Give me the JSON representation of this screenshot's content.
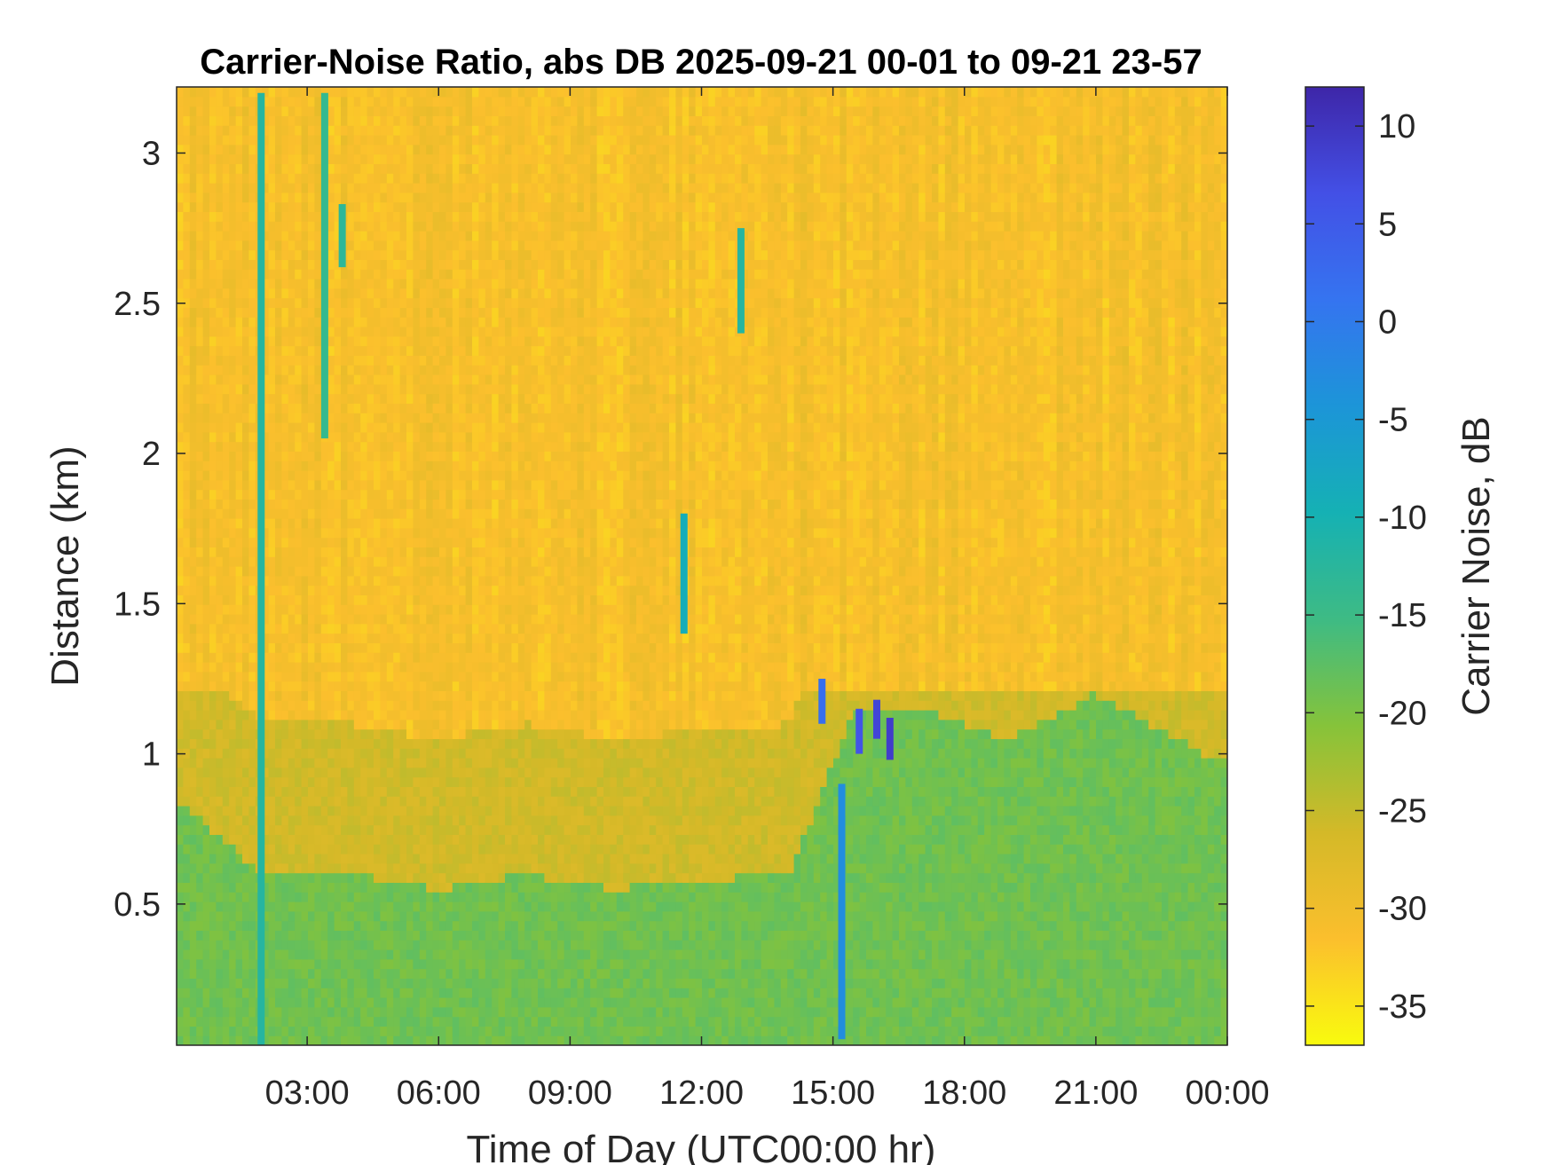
{
  "chart_data": {
    "type": "heatmap",
    "title": "Carrier-Noise Ratio, abs DB 2025-09-21 00-01 to 09-21 23-57",
    "xlabel": "Time of Day (UTC00:00 hr)",
    "ylabel": "Distance (km)",
    "colorbar_label": "Carrier Noise, dB",
    "x_range_hours": [
      0.02,
      24.0
    ],
    "x_ticks": [
      3,
      6,
      9,
      12,
      15,
      18,
      21,
      24
    ],
    "x_tick_labels": [
      "03:00",
      "06:00",
      "09:00",
      "12:00",
      "15:00",
      "18:00",
      "21:00",
      "00:00"
    ],
    "y_range_km": [
      0.03,
      3.22
    ],
    "y_ticks": [
      0.5,
      1,
      1.5,
      2,
      2.5,
      3
    ],
    "y_tick_labels": [
      "0.5",
      "1",
      "1.5",
      "2",
      "2.5",
      "3"
    ],
    "colorbar_range_db": [
      -37,
      12
    ],
    "colorbar_ticks": [
      10,
      5,
      0,
      -5,
      -10,
      -15,
      -20,
      -25,
      -30,
      -35
    ],
    "colorbar_tick_labels": [
      "10",
      "5",
      "0",
      "-5",
      "-10",
      "-15",
      "-20",
      "-25",
      "-30",
      "-35"
    ],
    "colormap": "parula (reversed: yellow = low, dark blue = high)",
    "colormap_stops": [
      "#f9fb0e",
      "#fbbf2d",
      "#d4b928",
      "#86c33a",
      "#3ebb84",
      "#15b1b4",
      "#1c95d8",
      "#3574f0",
      "#4350e6",
      "#3e26a8"
    ],
    "background_level_db": -31,
    "boundary_layer_height_km": [
      {
        "hour": 0,
        "km": 0.85
      },
      {
        "hour": 2,
        "km": 0.6
      },
      {
        "hour": 4,
        "km": 0.6
      },
      {
        "hour": 6,
        "km": 0.55
      },
      {
        "hour": 8,
        "km": 0.6
      },
      {
        "hour": 10,
        "km": 0.55
      },
      {
        "hour": 12,
        "km": 0.58
      },
      {
        "hour": 14,
        "km": 0.6
      },
      {
        "hour": 15.5,
        "km": 1.15
      },
      {
        "hour": 17,
        "km": 1.15
      },
      {
        "hour": 19,
        "km": 1.05
      },
      {
        "hour": 21,
        "km": 1.2
      },
      {
        "hour": 23.5,
        "km": 1.0
      }
    ],
    "boundary_layer_level_db": -19,
    "residual_layer": {
      "hour_start": 0,
      "hour_end": 24,
      "top_km": 1.2,
      "level_db": -26
    },
    "strong_returns": [
      {
        "hour": 1.95,
        "km_from": 0.03,
        "km_to": 3.2,
        "level_db": -12
      },
      {
        "hour": 3.4,
        "km_from": 2.05,
        "km_to": 3.2,
        "level_db": -14
      },
      {
        "hour": 3.8,
        "km_from": 2.62,
        "km_to": 2.83,
        "level_db": -13
      },
      {
        "hour": 11.6,
        "km_from": 1.4,
        "km_to": 1.8,
        "level_db": -9
      },
      {
        "hour": 12.9,
        "km_from": 2.4,
        "km_to": 2.75,
        "level_db": -12
      },
      {
        "hour": 14.75,
        "km_from": 1.1,
        "km_to": 1.25,
        "level_db": 2
      },
      {
        "hour": 15.2,
        "km_from": 0.05,
        "km_to": 0.9,
        "level_db": -3
      },
      {
        "hour": 15.6,
        "km_from": 1.0,
        "km_to": 1.15,
        "level_db": 6
      },
      {
        "hour": 16.0,
        "km_from": 1.05,
        "km_to": 1.18,
        "level_db": 8
      },
      {
        "hour": 16.3,
        "km_from": 0.98,
        "km_to": 1.12,
        "level_db": 9
      }
    ],
    "grid": false
  }
}
